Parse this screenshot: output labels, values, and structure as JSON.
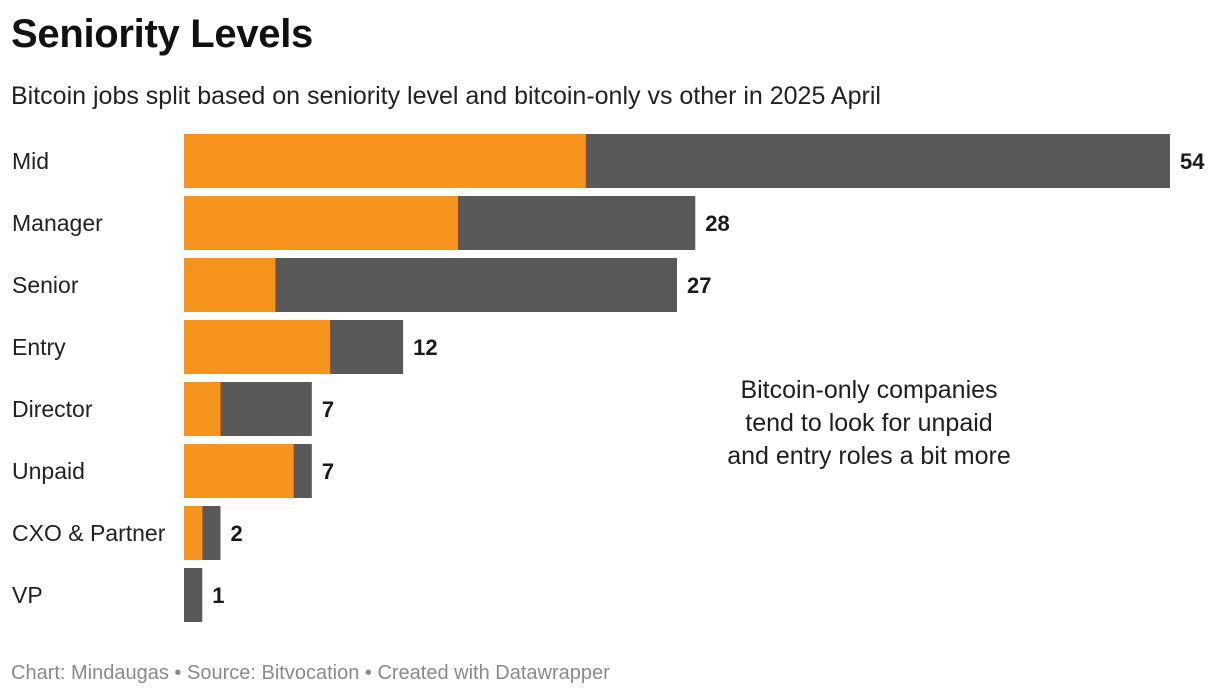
{
  "title": "Seniority Levels",
  "subtitle": "Bitcoin jobs split based on seniority level and bitcoin-only vs other in 2025 April",
  "annotation": "Bitcoin-only companies tend to look for unpaid and entry roles a bit more",
  "footer": {
    "chart": "Chart: Mindaugas",
    "sep1": " • ",
    "source": "Source: Bitvocation",
    "sep2": " • ",
    "created": "Created with Datawrapper"
  },
  "colors": {
    "bitcoin_only": "#f7941d",
    "other": "#595959"
  },
  "chart_data": {
    "type": "bar",
    "orientation": "horizontal",
    "stacked": true,
    "title": "Seniority Levels",
    "categories": [
      "Mid",
      "Manager",
      "Senior",
      "Entry",
      "Director",
      "Unpaid",
      "CXO & Partner",
      "VP"
    ],
    "series": [
      {
        "name": "Bitcoin-only",
        "color": "#f7941d",
        "values": [
          22,
          15,
          5,
          8,
          2,
          6,
          1,
          0
        ]
      },
      {
        "name": "Other",
        "color": "#595959",
        "values": [
          32,
          13,
          22,
          4,
          5,
          1,
          1,
          1
        ]
      }
    ],
    "totals": [
      54,
      28,
      27,
      12,
      7,
      7,
      2,
      1
    ],
    "xlim": [
      0,
      54
    ],
    "grid": false,
    "legend": "none"
  }
}
